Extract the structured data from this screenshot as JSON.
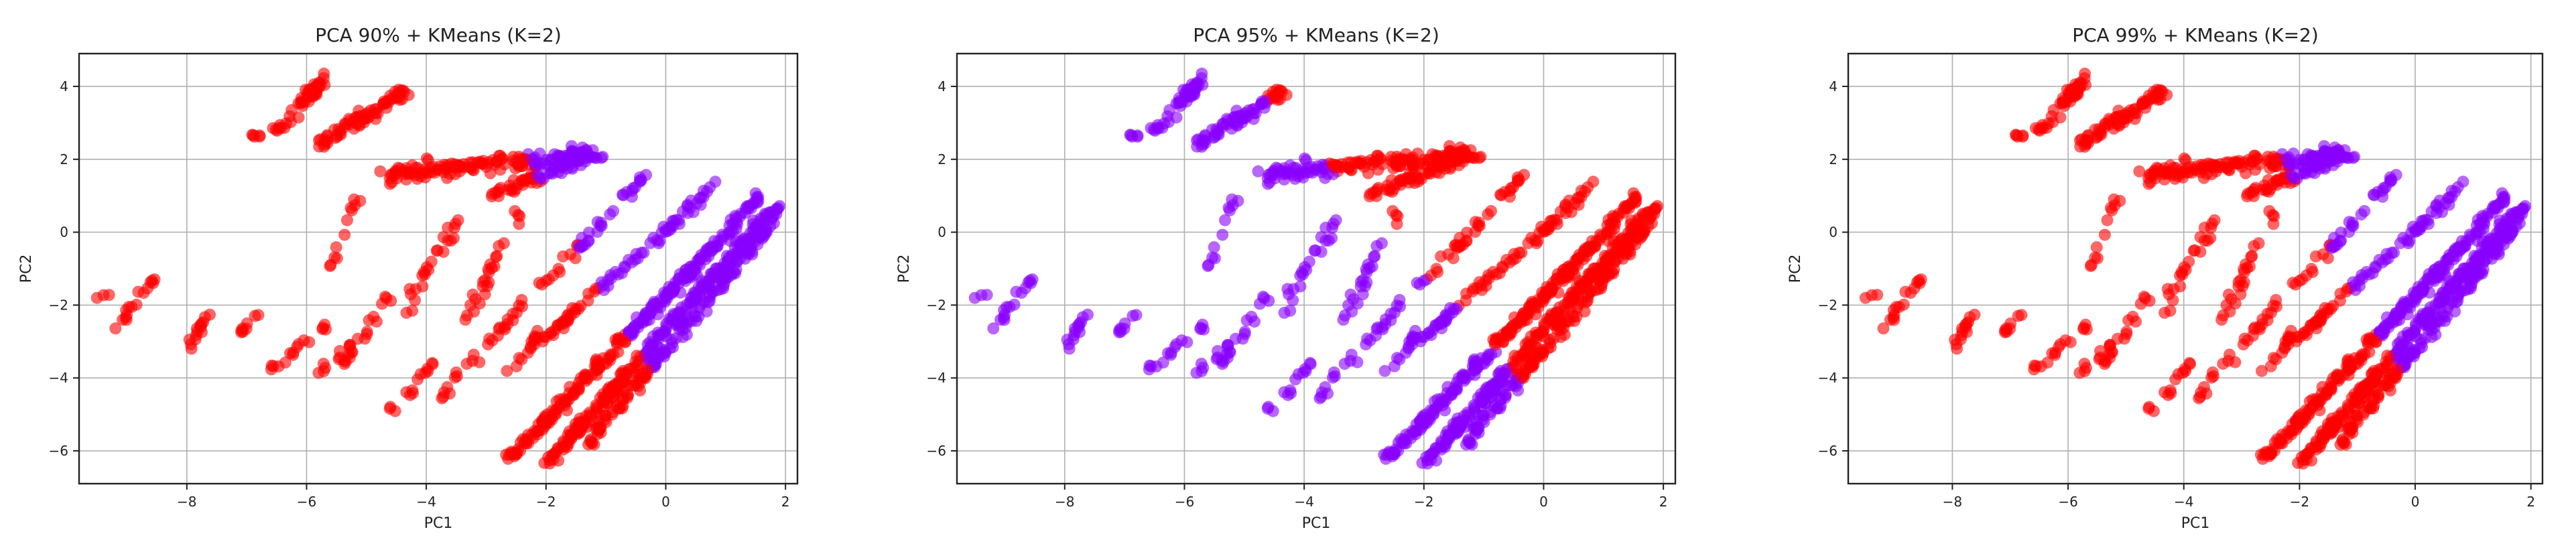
{
  "chart_data": [
    {
      "type": "scatter",
      "title": "PCA 90% + KMeans (K=2)",
      "xlabel": "PC1",
      "ylabel": "PC2",
      "xlim": [
        -9.8,
        2.2
      ],
      "ylim": [
        -6.9,
        4.9
      ],
      "xticks": [
        -8,
        -6,
        -4,
        -2,
        0,
        2
      ],
      "yticks": [
        -6,
        -4,
        -2,
        0,
        2,
        4
      ],
      "grid": true,
      "cluster_colors": [
        "#ff0000",
        "#8800ff"
      ],
      "red_cluster_side": "left"
    },
    {
      "type": "scatter",
      "title": "PCA 95% + KMeans (K=2)",
      "xlabel": "PC1",
      "ylabel": "PC2",
      "xlim": [
        -9.8,
        2.2
      ],
      "ylim": [
        -6.9,
        4.9
      ],
      "xticks": [
        -8,
        -6,
        -4,
        -2,
        0,
        2
      ],
      "yticks": [
        -6,
        -4,
        -2,
        0,
        2,
        4
      ],
      "grid": true,
      "cluster_colors": [
        "#8800ff",
        "#ff0000"
      ],
      "red_cluster_side": "right"
    },
    {
      "type": "scatter",
      "title": "PCA 99% + KMeans (K=2)",
      "xlabel": "PC1",
      "ylabel": "PC2",
      "xlim": [
        -9.8,
        2.2
      ],
      "ylim": [
        -6.9,
        4.9
      ],
      "xticks": [
        -8,
        -6,
        -4,
        -2,
        0,
        2
      ],
      "yticks": [
        -6,
        -4,
        -2,
        0,
        2,
        4
      ],
      "grid": true,
      "cluster_colors": [
        "#ff0000",
        "#8800ff"
      ],
      "red_cluster_side": "left"
    }
  ]
}
